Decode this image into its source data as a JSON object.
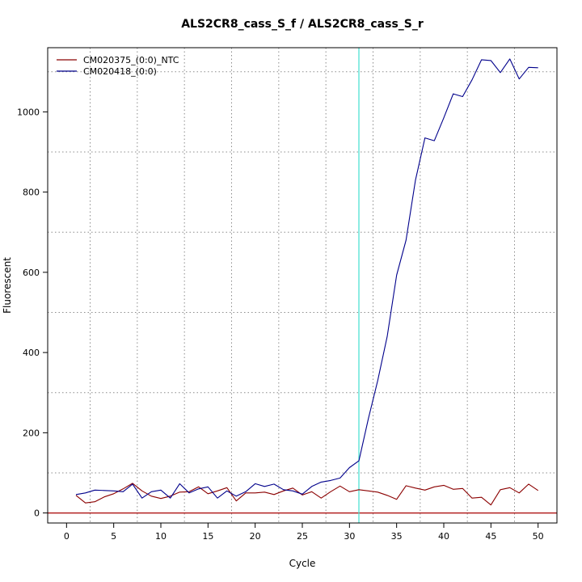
{
  "chart_data": {
    "type": "line",
    "title": "ALS2CR8_cass_S_f / ALS2CR8_cass_S_r",
    "xlabel": "Cycle",
    "ylabel": "Fluorescent",
    "xlim": [
      -2,
      52
    ],
    "ylim": [
      -25,
      1160
    ],
    "x_ticks": [
      0,
      5,
      10,
      15,
      20,
      25,
      30,
      35,
      40,
      45,
      50
    ],
    "y_ticks": [
      0,
      200,
      400,
      600,
      800,
      1000
    ],
    "x_grid": [
      2.5,
      7.5,
      12.5,
      17.5,
      22.5,
      27.5,
      32.5,
      37.5,
      42.5,
      47.5
    ],
    "y_grid": [
      100,
      300,
      500,
      700,
      900,
      1100
    ],
    "grid": true,
    "legend_position": "top-left",
    "threshold_cycle": 31,
    "baseline": 0,
    "colors": {
      "threshold": "#40e0d0",
      "baseline": "#b22222"
    },
    "x": [
      1,
      2,
      3,
      4,
      5,
      6,
      7,
      8,
      9,
      10,
      11,
      12,
      13,
      14,
      15,
      16,
      17,
      18,
      19,
      20,
      21,
      22,
      23,
      24,
      25,
      26,
      27,
      28,
      29,
      30,
      31,
      32,
      33,
      34,
      35,
      36,
      37,
      38,
      39,
      40,
      41,
      42,
      43,
      44,
      45,
      46,
      47,
      48,
      49,
      50
    ],
    "series": [
      {
        "name": "CM020375_(0:0)_NTC",
        "color": "#8b0000",
        "values": [
          44,
          25,
          28,
          40,
          48,
          60,
          74,
          55,
          42,
          36,
          42,
          52,
          53,
          65,
          48,
          55,
          63,
          30,
          50,
          50,
          52,
          46,
          55,
          62,
          45,
          53,
          37,
          53,
          67,
          53,
          58,
          55,
          52,
          44,
          34,
          68,
          62,
          57,
          65,
          69,
          59,
          61,
          37,
          39,
          20,
          58,
          63,
          50,
          72,
          56
        ]
      },
      {
        "name": "CM020418_(0:0)",
        "color": "#00008b",
        "values": [
          46,
          50,
          57,
          56,
          55,
          53,
          72,
          37,
          53,
          57,
          37,
          73,
          50,
          60,
          65,
          37,
          55,
          42,
          53,
          73,
          66,
          72,
          58,
          55,
          47,
          66,
          77,
          81,
          87,
          113,
          130,
          235,
          330,
          440,
          593,
          680,
          830,
          935,
          928,
          985,
          1045,
          1038,
          1080,
          1130,
          1128,
          1098,
          1132,
          1082,
          1111,
          1110
        ]
      }
    ]
  }
}
